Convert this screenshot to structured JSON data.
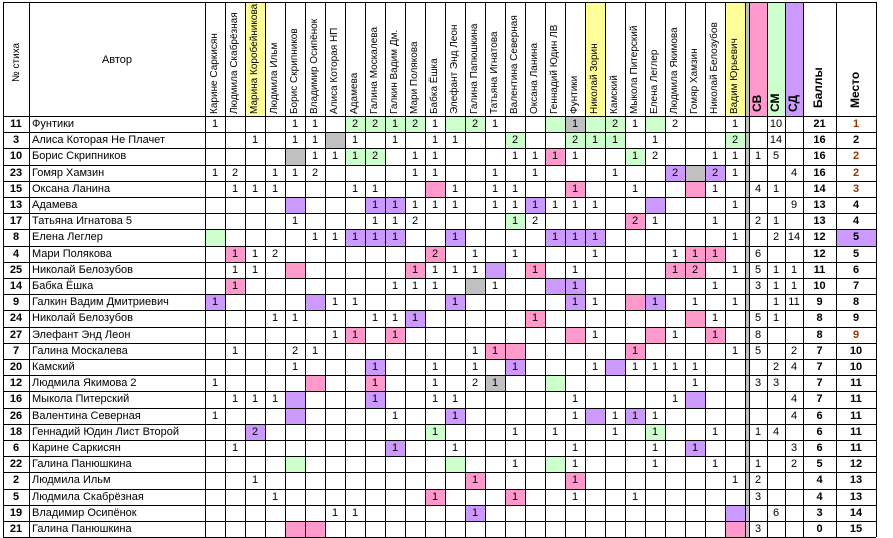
{
  "headers": {
    "num": "№ стиха",
    "author": "Автор",
    "sv": "СВ",
    "sm": "СМ",
    "sd": "СД",
    "score": "Баллы",
    "place": "Место"
  },
  "voters": [
    "Карине Саркисян",
    "Людмила Скабрёзная",
    "Марина Коробейникова",
    "Людмила Ильм",
    "Борис Скрипников",
    "Владимир Осипёнок",
    "Алиса Которая НП",
    "Адамева",
    "Галина Москалева",
    "Галкин Вадим Дм.",
    "Мари Полякова",
    "Бабка Ёшка",
    "Элефант Энд Леон",
    "Галина Папюшкина",
    "Татьяна Игнатова",
    "Валентина Северная",
    "Оксана Ланина",
    "Геннадий Юдин ЛВ",
    "Фунтики",
    "Николай Зорин",
    "Камский",
    "Мыкола Питерский",
    "Елена Леглер",
    "Людмила Якимова",
    "Гомяр Хамзин",
    "Николай Белозубов",
    "Вадим Юрьевич"
  ],
  "voter_highlight": {
    "2": "#ffff99",
    "19": "#ffff99",
    "26": "#ffff99"
  },
  "colors": {
    "pink": "#ff99cc",
    "green": "#ccffcc",
    "purple": "#cc99ff",
    "yellow": "#ffff99",
    "grey": "#c0c0c0",
    "place_orange": "#993300",
    "place_lilac": "#cc99ff",
    "place_gold": "#ffcc99"
  },
  "rows": [
    {
      "n": "11",
      "author": "Фунтики",
      "v": [
        "1",
        "",
        "",
        "",
        "1",
        "1",
        "",
        "2",
        "2",
        "1",
        "2",
        "1",
        "",
        "2",
        "1",
        "",
        "",
        "",
        "1",
        "",
        "2",
        "1",
        "",
        "2",
        "",
        "",
        "1"
      ],
      "c": {
        "7": "g",
        "8": "g",
        "9": "g",
        "10": "g",
        "12": "g",
        "13": "g",
        "17": "g",
        "18": "x",
        "19": "g",
        "20": "g",
        "22": "g"
      },
      "sv": "",
      "sm": "10",
      "sd": "",
      "score": "21",
      "place": "1",
      "pc": "orange"
    },
    {
      "n": "3",
      "author": "Алиса Которая Не Плачет",
      "v": [
        "",
        "",
        "1",
        "",
        "1",
        "1",
        "",
        "1",
        "",
        "1",
        "",
        "1",
        "1",
        "",
        "",
        "2",
        "",
        "",
        "2",
        "1",
        "1",
        "",
        "1",
        "",
        "",
        "",
        "2"
      ],
      "c": {
        "6": "x",
        "15": "g",
        "18": "g",
        "19": "g",
        "20": "g",
        "26": "g"
      },
      "sv": "",
      "sm": "14",
      "sd": "",
      "score": "16",
      "place": "2",
      "pc": "gold"
    },
    {
      "n": "10",
      "author": "Борис Скрипников",
      "v": [
        "",
        "",
        "",
        "",
        "",
        "1",
        "1",
        "1",
        "2",
        "",
        "1",
        "1",
        "",
        "",
        "",
        "1",
        "1",
        "1",
        "1",
        "",
        "",
        "1",
        "2",
        "",
        "",
        "1",
        "1"
      ],
      "c": {
        "4": "x",
        "7": "g",
        "8": "g",
        "17": "p",
        "21": "g"
      },
      "sv": "1",
      "sm": "5",
      "sd": "",
      "score": "16",
      "place": "2",
      "pc": "orange"
    },
    {
      "n": "23",
      "author": "Гомяр Хамзин",
      "v": [
        "1",
        "2",
        "",
        "1",
        "1",
        "2",
        "",
        "",
        "",
        "",
        "1",
        "1",
        "",
        "",
        "1",
        "",
        "1",
        "",
        "",
        "",
        "1",
        "",
        "",
        "2",
        "",
        "2",
        "1"
      ],
      "c": {
        "23": "u",
        "25": "u",
        "24": "x"
      },
      "sv": "",
      "sm": "",
      "sd": "4",
      "score": "16",
      "place": "2",
      "pc": "orange"
    },
    {
      "n": "15",
      "author": "Оксана Ланина",
      "v": [
        "",
        "1",
        "1",
        "1",
        "",
        "",
        "",
        "1",
        "1",
        "",
        "",
        "",
        "1",
        "",
        "1",
        "1",
        "",
        "",
        "1",
        "",
        "",
        "1",
        "",
        "",
        "",
        "1",
        ""
      ],
      "c": {
        "11": "p",
        "18": "p",
        "24": "p"
      },
      "sv": "4",
      "sm": "1",
      "sd": "",
      "score": "14",
      "place": "3",
      "pc": "orange"
    },
    {
      "n": "13",
      "author": "Адамева",
      "v": [
        "",
        "",
        "",
        "",
        "",
        "",
        "",
        "",
        "1",
        "1",
        "1",
        "1",
        "1",
        "",
        "1",
        "1",
        "1",
        "1",
        "1",
        "1",
        "",
        "",
        "",
        "",
        "",
        "",
        "1"
      ],
      "c": {
        "4": "u",
        "8": "u",
        "9": "u",
        "16": "u",
        "22": "u"
      },
      "sv": "",
      "sm": "",
      "sd": "9",
      "score": "13",
      "place": "4",
      "pc": ""
    },
    {
      "n": "17",
      "author": "Татьяна Игнатова 5",
      "v": [
        "",
        "",
        "",
        "",
        "1",
        "",
        "",
        "",
        "1",
        "1",
        "2",
        "",
        "",
        "",
        "",
        "1",
        "2",
        "",
        "",
        "",
        "",
        "2",
        "1",
        "",
        "",
        "1",
        ""
      ],
      "c": {
        "15": "g",
        "21": "p"
      },
      "sv": "2",
      "sm": "1",
      "sd": "",
      "score": "13",
      "place": "4",
      "pc": ""
    },
    {
      "n": "8",
      "author": "Елена Леглер",
      "v": [
        "",
        "",
        "",
        "",
        "",
        "1",
        "1",
        "1",
        "1",
        "1",
        "",
        "",
        "1",
        "",
        "",
        "",
        "",
        "1",
        "1",
        "1",
        "",
        "",
        "",
        "",
        "",
        "",
        "1"
      ],
      "c": {
        "0": "g",
        "7": "u",
        "8": "u",
        "9": "u",
        "12": "u",
        "17": "u",
        "18": "u",
        "19": "u"
      },
      "sv": "",
      "sm": "2",
      "sd": "14",
      "score": "12",
      "place": "5",
      "pc": "lilac"
    },
    {
      "n": "4",
      "author": "Мари Полякова",
      "v": [
        "",
        "1",
        "1",
        "2",
        "",
        "",
        "",
        "",
        "",
        "",
        "",
        "2",
        "",
        "1",
        "",
        "1",
        "",
        "",
        "",
        "1",
        "",
        "",
        "",
        "1",
        "1",
        "1",
        ""
      ],
      "c": {
        "1": "p",
        "11": "p",
        "24": "p",
        "25": "p"
      },
      "sv": "6",
      "sm": "",
      "sd": "",
      "score": "12",
      "place": "5",
      "pc": ""
    },
    {
      "n": "25",
      "author": "Николай Белозубов",
      "v": [
        "",
        "1",
        "1",
        "",
        "",
        "",
        "",
        "",
        "",
        "",
        "1",
        "1",
        "1",
        "1",
        "",
        "",
        "1",
        "",
        "1",
        "",
        "",
        "",
        "",
        "1",
        "2",
        "",
        "1"
      ],
      "c": {
        "4": "p",
        "10": "p",
        "14": "u",
        "16": "p",
        "23": "p",
        "24": "p"
      },
      "sv": "5",
      "sm": "1",
      "sd": "1",
      "score": "11",
      "place": "6",
      "pc": ""
    },
    {
      "n": "14",
      "author": "Бабка Ёшка",
      "v": [
        "",
        "1",
        "",
        "",
        "",
        "",
        "",
        "",
        "",
        "1",
        "1",
        "1",
        "",
        "",
        "1",
        "",
        "",
        "",
        "1",
        "",
        "",
        "",
        "",
        "",
        "",
        "1",
        ""
      ],
      "c": {
        "1": "p",
        "13": "x",
        "17": "u",
        "18": "u"
      },
      "sv": "3",
      "sm": "1",
      "sd": "1",
      "score": "10",
      "place": "7",
      "pc": ""
    },
    {
      "n": "9",
      "author": "Галкин Вадим Дмитриевич",
      "v": [
        "1",
        "",
        "",
        "",
        "",
        "",
        "1",
        "1",
        "",
        "",
        "",
        "",
        "1",
        "",
        "",
        "",
        "",
        "",
        "1",
        "1",
        "",
        "",
        "1",
        "",
        "1",
        "",
        "1"
      ],
      "c": {
        "0": "u",
        "5": "u",
        "12": "u",
        "18": "u",
        "21": "p",
        "22": "u"
      },
      "sv": "",
      "sm": "1",
      "sd": "11",
      "score": "9",
      "place": "8",
      "pc": ""
    },
    {
      "n": "24",
      "author": "Николай Белозубов",
      "v": [
        "",
        "",
        "",
        "1",
        "1",
        "",
        "",
        "",
        "1",
        "1",
        "1",
        "",
        "",
        "",
        "",
        "",
        "1",
        "",
        "",
        "",
        "",
        "",
        "",
        "",
        "",
        "1",
        ""
      ],
      "c": {
        "10": "u",
        "16": "p",
        "24": "p"
      },
      "sv": "5",
      "sm": "1",
      "sd": "",
      "score": "8",
      "place": "9",
      "pc": ""
    },
    {
      "n": "27",
      "author": "Элефант Энд Леон",
      "v": [
        "",
        "",
        "",
        "",
        "",
        "",
        "1",
        "1",
        "",
        "1",
        "",
        "",
        "",
        "",
        "",
        "",
        "",
        "",
        "",
        "1",
        "",
        "",
        "",
        "1",
        "",
        "1",
        ""
      ],
      "c": {
        "7": "p",
        "9": "p",
        "18": "p",
        "22": "p",
        "25": "p"
      },
      "sv": "8",
      "sm": "",
      "sd": "",
      "score": "8",
      "place": "9",
      "pc": "orange"
    },
    {
      "n": "7",
      "author": "Галина Москалева",
      "v": [
        "",
        "1",
        "",
        "",
        "2",
        "1",
        "",
        "",
        "",
        "",
        "",
        "",
        "",
        "1",
        "1",
        "",
        "",
        "",
        "",
        "",
        "",
        "1",
        "",
        "",
        "",
        "",
        "1"
      ],
      "c": {
        "14": "p",
        "15": "p",
        "21": "p"
      },
      "sv": "5",
      "sm": "",
      "sd": "2",
      "score": "7",
      "place": "10",
      "pc": ""
    },
    {
      "n": "20",
      "author": "Камский",
      "v": [
        "",
        "",
        "",
        "",
        "1",
        "",
        "",
        "",
        "1",
        "",
        "",
        "1",
        "",
        "1",
        "",
        "1",
        "",
        "",
        "",
        "1",
        "",
        "1",
        "1",
        "1",
        "1",
        "",
        ""
      ],
      "c": {
        "8": "u",
        "15": "u",
        "20": "u"
      },
      "sv": "",
      "sm": "2",
      "sd": "4",
      "score": "7",
      "place": "10",
      "pc": ""
    },
    {
      "n": "12",
      "author": "Людмила Якимова 2",
      "v": [
        "1",
        "",
        "",
        "",
        "",
        "",
        "",
        "",
        "1",
        "",
        "",
        "1",
        "",
        "2",
        "1",
        "",
        "",
        "",
        "",
        "",
        "",
        "",
        "",
        "",
        "1",
        "",
        ""
      ],
      "c": {
        "5": "p",
        "8": "p",
        "14": "x",
        "17": "g"
      },
      "sv": "3",
      "sm": "3",
      "sd": "",
      "score": "7",
      "place": "11",
      "pc": ""
    },
    {
      "n": "16",
      "author": "Мыкола Питерский",
      "v": [
        "",
        "1",
        "1",
        "1",
        "",
        "",
        "",
        "",
        "1",
        "",
        "",
        "1",
        "1",
        "",
        "",
        "",
        "",
        "",
        "1",
        "",
        "",
        "",
        "",
        "1",
        "",
        "",
        ""
      ],
      "c": {
        "4": "u",
        "8": "u",
        "24": "u"
      },
      "sv": "",
      "sm": "",
      "sd": "4",
      "score": "7",
      "place": "11",
      "pc": ""
    },
    {
      "n": "26",
      "author": "Валентина Северная",
      "v": [
        "1",
        "",
        "",
        "",
        "",
        "",
        "",
        "",
        "",
        "1",
        "",
        "",
        "1",
        "",
        "",
        "",
        "",
        "",
        "1",
        "",
        "1",
        "1",
        "1",
        "",
        "",
        "",
        ""
      ],
      "c": {
        "4": "u",
        "12": "u",
        "19": "u",
        "21": "u"
      },
      "sv": "",
      "sm": "",
      "sd": "4",
      "score": "6",
      "place": "11",
      "pc": ""
    },
    {
      "n": "18",
      "author": "Геннадий Юдин Лист Второй",
      "v": [
        "",
        "",
        "2",
        "",
        "",
        "",
        "",
        "",
        "",
        "",
        "",
        "1",
        "",
        "",
        "",
        "1",
        "",
        "1",
        "",
        "",
        "1",
        "",
        "1",
        "",
        "",
        "1",
        ""
      ],
      "c": {
        "2": "u",
        "11": "g",
        "22": "g"
      },
      "sv": "1",
      "sm": "4",
      "sd": "",
      "score": "6",
      "place": "11",
      "pc": ""
    },
    {
      "n": "6",
      "author": "Карине Саркисян",
      "v": [
        "",
        "1",
        "",
        "",
        "",
        "",
        "",
        "",
        "",
        "1",
        "",
        "",
        "1",
        "",
        "",
        "",
        "",
        "",
        "1",
        "",
        "",
        "",
        "1",
        "",
        "1",
        "",
        ""
      ],
      "c": {
        "9": "u",
        "24": "u"
      },
      "sv": "",
      "sm": "",
      "sd": "3",
      "score": "6",
      "place": "11",
      "pc": ""
    },
    {
      "n": "22",
      "author": "Галина Панюшкина",
      "v": [
        "",
        "",
        "",
        "",
        "",
        "",
        "",
        "",
        "",
        "",
        "",
        "",
        "",
        "",
        "",
        "1",
        "",
        "",
        "1",
        "",
        "",
        "",
        "1",
        "",
        "",
        "1",
        ""
      ],
      "c": {
        "4": "g",
        "12": "g",
        "17": "g"
      },
      "sv": "1",
      "sm": "",
      "sd": "2",
      "score": "5",
      "place": "12",
      "pc": ""
    },
    {
      "n": "2",
      "author": "Людмила Ильм",
      "v": [
        "",
        "",
        "1",
        "",
        "",
        "",
        "",
        "",
        "",
        "",
        "",
        "",
        "",
        "1",
        "",
        "",
        "",
        "",
        "1",
        "",
        "",
        "",
        "",
        "",
        "",
        "",
        "1"
      ],
      "c": {
        "13": "p",
        "18": "p"
      },
      "sv": "2",
      "sm": "",
      "sd": "",
      "score": "4",
      "place": "13",
      "pc": ""
    },
    {
      "n": "5",
      "author": "Людмила Скабрёзная",
      "v": [
        "",
        "",
        "",
        "1",
        "",
        "",
        "",
        "",
        "",
        "",
        "",
        "1",
        "",
        "",
        "",
        "1",
        "",
        "",
        "1",
        "",
        "",
        "1",
        "",
        "",
        "",
        "",
        ""
      ],
      "c": {
        "11": "p",
        "15": "p"
      },
      "sv": "3",
      "sm": "",
      "sd": "",
      "score": "4",
      "place": "13",
      "pc": ""
    },
    {
      "n": "19",
      "author": "Владимир Осипёнок",
      "v": [
        "",
        "",
        "",
        "",
        "",
        "",
        "1",
        "1",
        "",
        "",
        "",
        "",
        "",
        "1",
        "",
        "",
        "",
        "",
        "",
        "",
        "",
        "",
        "",
        "",
        "",
        "",
        ""
      ],
      "c": {
        "13": "u",
        "26": "u"
      },
      "sv": "",
      "sm": "6",
      "sd": "",
      "score": "3",
      "place": "14",
      "pc": ""
    },
    {
      "n": "21",
      "author": "Галина Панюшкина",
      "v": [
        "",
        "",
        "",
        "",
        "",
        "",
        "",
        "",
        "",
        "",
        "",
        "",
        "",
        "",
        "",
        "",
        "",
        "",
        "",
        "",
        "",
        "",
        "",
        "",
        "",
        "",
        ""
      ],
      "c": {
        "4": "p",
        "5": "p",
        "26": "p"
      },
      "sv": "3",
      "sm": "",
      "sd": "",
      "score": "0",
      "place": "15",
      "pc": ""
    }
  ]
}
